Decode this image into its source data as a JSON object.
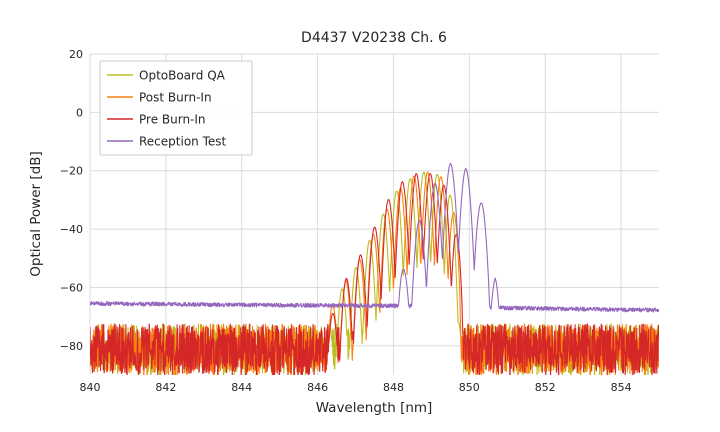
{
  "chart_data": {
    "type": "line",
    "title": "D4437 V20238 Ch. 6",
    "xlabel": "Wavelength [nm]",
    "ylabel": "Optical Power [dB]",
    "xlim": [
      840,
      855
    ],
    "ylim": [
      -90,
      20
    ],
    "xticks": [
      840,
      842,
      844,
      846,
      848,
      850,
      852,
      854
    ],
    "yticks": [
      20,
      0,
      -20,
      -40,
      -60,
      -80
    ],
    "grid": true,
    "legend_position": "upper left",
    "colors": {
      "grid": "#dcdcdc",
      "text": "#262626",
      "background": "#ffffff",
      "legend_border": "#cccccc"
    },
    "series": [
      {
        "name": "OptoBoard QA",
        "color": "#bcbd22",
        "seed": 101,
        "baseline": [
          [
            840,
            -81
          ],
          [
            855,
            -81
          ]
        ],
        "noise_amp": 8.5,
        "spike_prob": 0.04,
        "spike_size": 7,
        "envelope": [
          [
            846.15,
            -80
          ],
          [
            846.5,
            -63
          ],
          [
            846.9,
            -56
          ],
          [
            847.2,
            -48
          ],
          [
            847.6,
            -38
          ],
          [
            848.0,
            -28
          ],
          [
            848.4,
            -23
          ],
          [
            848.8,
            -20.5
          ],
          [
            849.1,
            -20.5
          ],
          [
            849.45,
            -25
          ],
          [
            849.7,
            -40
          ],
          [
            849.82,
            -80
          ]
        ],
        "mode_spacing": 0.36,
        "mode_phase": 848.8,
        "valley_depth": 32,
        "peak_sharpness": 0.45
      },
      {
        "name": "Post Burn-In",
        "color": "#ff7f0e",
        "seed": 202,
        "baseline": [
          [
            840,
            -81
          ],
          [
            855,
            -81
          ]
        ],
        "noise_amp": 8.5,
        "spike_prob": 0.04,
        "spike_size": 7,
        "envelope": [
          [
            846.1,
            -76
          ],
          [
            846.5,
            -62
          ],
          [
            846.9,
            -55
          ],
          [
            847.3,
            -46
          ],
          [
            847.7,
            -36
          ],
          [
            848.1,
            -27
          ],
          [
            848.5,
            -22
          ],
          [
            848.9,
            -20.5
          ],
          [
            849.2,
            -21
          ],
          [
            849.5,
            -27
          ],
          [
            849.75,
            -45
          ],
          [
            849.88,
            -82
          ]
        ],
        "mode_spacing": 0.36,
        "mode_phase": 848.9,
        "valley_depth": 32,
        "peak_sharpness": 0.45
      },
      {
        "name": "Pre Burn-In",
        "color": "#d62728",
        "seed": 303,
        "baseline": [
          [
            840,
            -81
          ],
          [
            855,
            -81
          ]
        ],
        "noise_amp": 8.5,
        "spike_prob": 0.04,
        "spike_size": 7,
        "envelope": [
          [
            846.2,
            -77
          ],
          [
            846.6,
            -60
          ],
          [
            847.0,
            -52
          ],
          [
            847.4,
            -42
          ],
          [
            847.8,
            -31
          ],
          [
            848.2,
            -24
          ],
          [
            848.6,
            -21
          ],
          [
            849.0,
            -21
          ],
          [
            849.3,
            -24
          ],
          [
            849.6,
            -33
          ],
          [
            849.8,
            -55
          ],
          [
            849.9,
            -82
          ]
        ],
        "mode_spacing": 0.37,
        "mode_phase": 848.6,
        "valley_depth": 30,
        "peak_sharpness": 0.45
      },
      {
        "name": "Reception Test",
        "color": "#9467bd",
        "seed": 404,
        "baseline": [
          [
            840,
            -65.5
          ],
          [
            844,
            -66
          ],
          [
            848,
            -66.3
          ],
          [
            850.8,
            -67
          ],
          [
            855,
            -67.8
          ]
        ],
        "noise_amp": 0.7,
        "spike_prob": 0,
        "spike_size": 0,
        "envelope": [
          [
            847.9,
            -66
          ],
          [
            848.3,
            -52
          ],
          [
            848.7,
            -36
          ],
          [
            849.1,
            -24
          ],
          [
            849.5,
            -17.5
          ],
          [
            849.9,
            -19
          ],
          [
            850.2,
            -26
          ],
          [
            850.5,
            -38
          ],
          [
            850.68,
            -52
          ],
          [
            850.78,
            -67
          ]
        ],
        "mode_spacing": 0.42,
        "mode_phase": 849.5,
        "valley_depth": 30,
        "peak_sharpness": 0.45
      }
    ]
  }
}
